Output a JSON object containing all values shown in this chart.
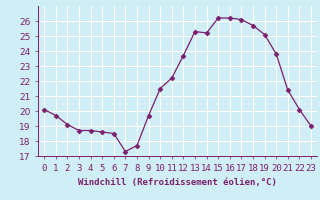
{
  "x": [
    0,
    1,
    2,
    3,
    4,
    5,
    6,
    7,
    8,
    9,
    10,
    11,
    12,
    13,
    14,
    15,
    16,
    17,
    18,
    19,
    20,
    21,
    22,
    23
  ],
  "y": [
    20.1,
    19.7,
    19.1,
    18.7,
    18.7,
    18.6,
    18.5,
    17.3,
    17.7,
    19.7,
    21.5,
    22.2,
    23.7,
    25.3,
    25.2,
    26.2,
    26.2,
    26.1,
    25.7,
    25.1,
    23.8,
    21.4,
    20.1,
    19.0
  ],
  "xlim": [
    -0.5,
    23.5
  ],
  "ylim": [
    17,
    27
  ],
  "yticks": [
    17,
    18,
    19,
    20,
    21,
    22,
    23,
    24,
    25,
    26
  ],
  "xtick_labels": [
    "0",
    "1",
    "2",
    "3",
    "4",
    "5",
    "6",
    "7",
    "8",
    "9",
    "10",
    "11",
    "12",
    "13",
    "14",
    "15",
    "16",
    "17",
    "18",
    "19",
    "20",
    "21",
    "22",
    "23"
  ],
  "xlabel": "Windchill (Refroidissement éolien,°C)",
  "line_color": "#7b1f6e",
  "marker": "D",
  "marker_size": 2.5,
  "bg_color": "#d0eef5",
  "grid_color": "#ffffff",
  "xlabel_fontsize": 6.5,
  "tick_fontsize": 6.5
}
